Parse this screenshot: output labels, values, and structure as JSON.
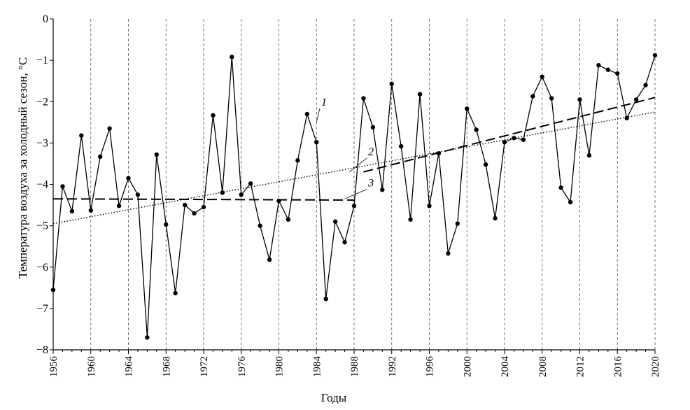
{
  "chart_data": {
    "type": "line",
    "xlabel": "Годы",
    "ylabel": "Температура воздуха за холодный сезон, °С",
    "xlim": [
      1956,
      2020
    ],
    "ylim": [
      -8,
      0
    ],
    "grid": "vertical dashed lines at each x tick",
    "x_ticks": [
      1956,
      1960,
      1964,
      1968,
      1972,
      1976,
      1980,
      1984,
      1988,
      1992,
      1996,
      2000,
      2004,
      2008,
      2012,
      2016,
      2020
    ],
    "x_tick_labels": [
      "1956",
      "1960",
      "1964",
      "1968",
      "1972",
      "1976",
      "1980",
      "1984",
      "1988",
      "1992",
      "1996",
      "2000",
      "2004",
      "2008",
      "2012",
      "2016",
      "2020"
    ],
    "y_ticks": [
      0,
      -1,
      -2,
      -3,
      -4,
      -5,
      -6,
      -7,
      -8
    ],
    "y_tick_labels": [
      "0",
      "−1",
      "−2",
      "−3",
      "−4",
      "−5",
      "−6",
      "−7",
      "−8"
    ],
    "series": [
      {
        "label": "1",
        "style": "solid with markers",
        "x": [
          1956,
          1957,
          1958,
          1959,
          1960,
          1961,
          1962,
          1963,
          1964,
          1965,
          1966,
          1967,
          1968,
          1969,
          1970,
          1971,
          1972,
          1973,
          1974,
          1975,
          1976,
          1977,
          1978,
          1979,
          1980,
          1981,
          1982,
          1983,
          1984,
          1985,
          1986,
          1987,
          1988,
          1989,
          1990,
          1991,
          1992,
          1993,
          1994,
          1995,
          1996,
          1997,
          1998,
          1999,
          2000,
          2001,
          2002,
          2003,
          2004,
          2005,
          2006,
          2007,
          2008,
          2009,
          2010,
          2011,
          2012,
          2013,
          2014,
          2015,
          2016,
          2017,
          2018,
          2019,
          2020
        ],
        "y": [
          -6.55,
          -4.05,
          -4.65,
          -2.82,
          -4.63,
          -3.33,
          -2.65,
          -4.52,
          -3.85,
          -4.25,
          -7.7,
          -3.28,
          -4.97,
          -6.63,
          -4.5,
          -4.7,
          -4.55,
          -2.33,
          -4.2,
          -0.92,
          -4.25,
          -3.98,
          -5.0,
          -5.82,
          -4.4,
          -4.85,
          -3.42,
          -2.3,
          -2.98,
          -6.77,
          -4.9,
          -5.4,
          -4.52,
          -1.92,
          -2.62,
          -4.13,
          -1.57,
          -3.08,
          -4.85,
          -1.82,
          -4.52,
          -3.25,
          -5.67,
          -4.95,
          -2.17,
          -2.68,
          -3.52,
          -4.82,
          -2.98,
          -2.88,
          -2.92,
          -1.87,
          -1.4,
          -1.92,
          -4.08,
          -4.43,
          -1.95,
          -3.3,
          -1.12,
          -1.23,
          -1.32,
          -2.4,
          -1.95,
          -1.6,
          -0.88
        ]
      },
      {
        "label": "2",
        "style": "dotted",
        "x": [
          1956,
          2020
        ],
        "y": [
          -4.95,
          -2.25
        ]
      },
      {
        "label": "3",
        "style": "dashed",
        "segments": [
          {
            "x": [
              1956,
              1988
            ],
            "y": [
              -4.35,
              -4.38
            ]
          },
          {
            "x": [
              1989,
              2020
            ],
            "y": [
              -3.7,
              -1.9
            ]
          }
        ]
      }
    ],
    "annotations": [
      {
        "text": "1",
        "target_series": "1",
        "x": 1984.5,
        "y": -2.1
      },
      {
        "text": "2",
        "target_series": "2",
        "x": 1989.5,
        "y": -3.3
      },
      {
        "text": "3",
        "target_series": "3",
        "x": 1989.5,
        "y": -4.05
      }
    ]
  }
}
